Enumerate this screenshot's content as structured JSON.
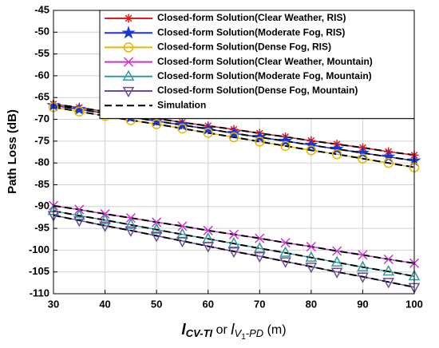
{
  "chart_data": {
    "type": "line",
    "ylabel": "Path Loss (dB)",
    "xlabel": [
      "l",
      "CV-TI",
      " or ",
      "l",
      "V",
      "1",
      "-PD",
      " (m)"
    ],
    "x": [
      30,
      35,
      40,
      45,
      50,
      55,
      60,
      65,
      70,
      75,
      80,
      85,
      90,
      95,
      100
    ],
    "xlim": [
      30,
      100
    ],
    "xticks": [
      30,
      40,
      50,
      60,
      70,
      80,
      90,
      100
    ],
    "ylim": [
      -110,
      -45
    ],
    "yticks": [
      -110,
      -105,
      -100,
      -95,
      -90,
      -85,
      -80,
      -75,
      -70,
      -65,
      -60,
      -55,
      -50,
      -45
    ],
    "grid": true,
    "legend": "upper right",
    "series": [
      {
        "name": "Closed-form Solution(Clear Weather, RIS)",
        "color": "#e41a1c",
        "marker": "asterisk",
        "values": [
          -66.5,
          -67.3,
          -68.2,
          -69.0,
          -69.8,
          -70.7,
          -71.5,
          -72.3,
          -73.2,
          -74.0,
          -74.9,
          -75.7,
          -76.5,
          -77.4,
          -78.2
        ]
      },
      {
        "name": "Closed-form Solution(Moderate Fog, RIS)",
        "color": "#1a37d6",
        "marker": "star",
        "values": [
          -66.8,
          -67.7,
          -68.6,
          -69.5,
          -70.4,
          -71.3,
          -72.2,
          -73.2,
          -74.1,
          -75.0,
          -75.9,
          -76.8,
          -77.7,
          -78.6,
          -79.5
        ]
      },
      {
        "name": "Closed-form Solution(Dense Fog, RIS)",
        "color": "#e6b800",
        "marker": "circle",
        "values": [
          -67.2,
          -68.2,
          -69.2,
          -70.2,
          -71.1,
          -72.1,
          -73.1,
          -74.1,
          -75.1,
          -76.1,
          -77.1,
          -78.0,
          -79.0,
          -80.0,
          -81.0
        ]
      },
      {
        "name": "Closed-form Solution(Clear Weather, Mountain)",
        "color": "#cc33cc",
        "marker": "x",
        "values": [
          -89.8,
          -90.7,
          -91.7,
          -92.6,
          -93.6,
          -94.5,
          -95.5,
          -96.4,
          -97.3,
          -98.3,
          -99.2,
          -100.2,
          -101.1,
          -102.1,
          -103.0
        ]
      },
      {
        "name": "Closed-form Solution(Moderate Fog, Mountain)",
        "color": "#339999",
        "marker": "triangle",
        "values": [
          -91.0,
          -92.1,
          -93.1,
          -94.2,
          -95.3,
          -96.4,
          -97.4,
          -98.5,
          -99.6,
          -100.6,
          -101.7,
          -102.8,
          -103.9,
          -104.9,
          -106.0
        ]
      },
      {
        "name": "Closed-form Solution(Dense Fog, Mountain)",
        "color": "#6b4e9b",
        "marker": "triangle-down",
        "values": [
          -92.0,
          -93.2,
          -94.4,
          -95.5,
          -96.7,
          -97.9,
          -99.1,
          -100.3,
          -101.4,
          -102.6,
          -103.8,
          -105.0,
          -106.1,
          -107.3,
          -108.5
        ]
      }
    ],
    "simulation": {
      "name": "Simulation",
      "color": "#000000",
      "values": [
        [
          -66.5,
          -67.3,
          -68.2,
          -69.0,
          -69.8,
          -70.7,
          -71.5,
          -72.3,
          -73.2,
          -74.0,
          -74.9,
          -75.7,
          -76.5,
          -77.4,
          -78.2
        ],
        [
          -66.8,
          -67.7,
          -68.6,
          -69.5,
          -70.4,
          -71.3,
          -72.2,
          -73.2,
          -74.1,
          -75.0,
          -75.9,
          -76.8,
          -77.7,
          -78.6,
          -79.5
        ],
        [
          -67.2,
          -68.2,
          -69.2,
          -70.2,
          -71.1,
          -72.1,
          -73.1,
          -74.1,
          -75.1,
          -76.1,
          -77.1,
          -78.0,
          -79.0,
          -80.0,
          -81.0
        ],
        [
          -89.8,
          -90.7,
          -91.7,
          -92.6,
          -93.6,
          -94.5,
          -95.5,
          -96.4,
          -97.3,
          -98.3,
          -99.2,
          -100.2,
          -101.1,
          -102.1,
          -103.0
        ],
        [
          -91.0,
          -92.1,
          -93.1,
          -94.2,
          -95.3,
          -96.4,
          -97.4,
          -98.5,
          -99.6,
          -100.6,
          -101.7,
          -102.8,
          -103.9,
          -104.9,
          -106.0
        ],
        [
          -92.0,
          -93.2,
          -94.4,
          -95.5,
          -96.7,
          -97.9,
          -99.1,
          -100.3,
          -101.4,
          -102.6,
          -103.8,
          -105.0,
          -106.1,
          -107.3,
          -108.5
        ]
      ]
    }
  }
}
